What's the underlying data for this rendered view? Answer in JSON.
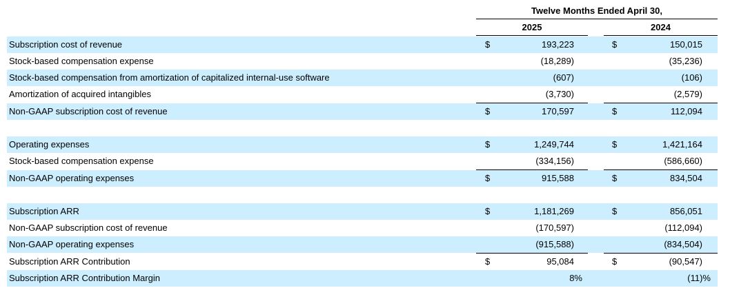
{
  "header": {
    "period": "Twelve Months Ended April 30,",
    "year1": "2025",
    "year2": "2024"
  },
  "rows": [
    {
      "label": "Subscription cost of revenue",
      "cur1": "$",
      "v1": "193,223",
      "cur2": "$",
      "v2": "150,015"
    },
    {
      "label": "Stock-based compensation expense",
      "cur1": "",
      "v1": "(18,289)",
      "cur2": "",
      "v2": "(35,236)"
    },
    {
      "label": "Stock-based compensation from amortization of capitalized internal-use software",
      "cur1": "",
      "v1": "(607)",
      "cur2": "",
      "v2": "(106)"
    },
    {
      "label": "Amortization of acquired intangibles",
      "cur1": "",
      "v1": "(3,730)",
      "cur2": "",
      "v2": "(2,579)"
    },
    {
      "label": "Non-GAAP subscription cost of revenue",
      "cur1": "$",
      "v1": "170,597",
      "cur2": "$",
      "v2": "112,094"
    },
    {
      "label": "Operating expenses",
      "cur1": "$",
      "v1": "1,249,744",
      "cur2": "$",
      "v2": "1,421,164"
    },
    {
      "label": "Stock-based compensation expense",
      "cur1": "",
      "v1": "(334,156)",
      "cur2": "",
      "v2": "(586,660)"
    },
    {
      "label": "Non-GAAP operating expenses",
      "cur1": "$",
      "v1": "915,588",
      "cur2": "$",
      "v2": "834,504"
    },
    {
      "label": "Subscription ARR",
      "cur1": "$",
      "v1": "1,181,269",
      "cur2": "$",
      "v2": "856,051"
    },
    {
      "label": "Non-GAAP subscription cost of revenue",
      "cur1": "",
      "v1": "(170,597)",
      "cur2": "",
      "v2": "(112,094)"
    },
    {
      "label": "Non-GAAP operating expenses",
      "cur1": "",
      "v1": "(915,588)",
      "cur2": "",
      "v2": "(834,504)"
    },
    {
      "label": "Subscription ARR Contribution",
      "cur1": "$",
      "v1": "95,084",
      "cur2": "$",
      "v2": "(90,547)"
    },
    {
      "label": "Subscription ARR Contribution Margin",
      "cur1": "",
      "v1": "8%",
      "cur2": "",
      "v2": "(11)%"
    }
  ]
}
